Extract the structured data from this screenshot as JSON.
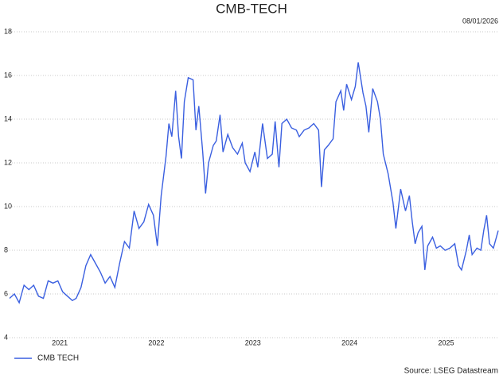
{
  "chart_data": {
    "type": "line",
    "title": "CMB-TECH",
    "date": "08/01/2026",
    "source": "Source: LSEG Datastream",
    "x": [
      2020.98,
      2021.03,
      2021.08,
      2021.13,
      2021.18,
      2021.23,
      2021.28,
      2021.33,
      2021.38,
      2021.43,
      2021.48,
      2021.53,
      2021.58,
      2021.63,
      2021.67,
      2021.72,
      2021.77,
      2021.82,
      2021.87,
      2021.92,
      2021.97,
      2022.02,
      2022.07,
      2022.12,
      2022.17,
      2022.22,
      2022.27,
      2022.32,
      2022.37,
      2022.42,
      2022.47,
      2022.51,
      2022.55,
      2022.6,
      2022.63,
      2022.66,
      2022.7,
      2022.73,
      2022.76,
      2022.79,
      2022.83,
      2022.88,
      2022.91,
      2022.94,
      2022.98,
      2023.01,
      2023.04,
      2023.09,
      2023.12,
      2023.16,
      2023.19,
      2023.24,
      2023.29,
      2023.34,
      2023.39,
      2023.42,
      2023.47,
      2023.52,
      2023.55,
      2023.6,
      2023.65,
      2023.7,
      2023.73,
      2023.77,
      2023.8,
      2023.85,
      2023.9,
      2023.95,
      2023.98,
      2024.03,
      2024.08,
      2024.13,
      2024.18,
      2024.21,
      2024.24,
      2024.28,
      2024.33,
      2024.36,
      2024.41,
      2024.44,
      2024.47,
      2024.52,
      2024.56,
      2024.59,
      2024.64,
      2024.67,
      2024.7,
      2024.74,
      2024.79,
      2024.82,
      2024.85,
      2024.9,
      2024.95,
      2024.98,
      2025.03,
      2025.08,
      2025.12,
      2025.15,
      2025.18,
      2025.21,
      2025.25,
      2025.28,
      2025.31,
      2025.36,
      2025.4,
      2025.44,
      2025.49,
      2025.54,
      2025.59,
      2025.63,
      2025.66,
      2025.71,
      2025.74,
      2025.77,
      2025.82,
      2025.86,
      2025.89,
      2025.92,
      2025.95,
      2025.99,
      2026.04
    ],
    "series": [
      {
        "name": "CMB TECH",
        "color": "#3a5fe0",
        "values": [
          5.8,
          6.0,
          5.6,
          6.4,
          6.2,
          6.4,
          5.9,
          5.8,
          6.6,
          6.5,
          6.6,
          6.1,
          5.9,
          5.7,
          5.8,
          6.3,
          7.3,
          7.8,
          7.4,
          7.0,
          6.5,
          6.8,
          6.3,
          7.4,
          8.4,
          8.1,
          9.8,
          9.0,
          9.3,
          10.1,
          9.6,
          8.2,
          10.5,
          12.3,
          13.8,
          13.2,
          15.3,
          13.2,
          12.2,
          14.8,
          15.9,
          15.8,
          13.5,
          14.6,
          12.5,
          10.6,
          12.0,
          12.8,
          13.0,
          14.2,
          12.5,
          13.3,
          12.7,
          12.4,
          12.9,
          12.0,
          11.6,
          12.5,
          11.8,
          13.8,
          12.2,
          12.4,
          13.9,
          11.8,
          13.8,
          14.0,
          13.6,
          13.5,
          13.2,
          13.5,
          13.6,
          13.8,
          13.5,
          10.9,
          12.6,
          12.8,
          13.1,
          14.8,
          15.3,
          14.4,
          15.6,
          14.9,
          15.5,
          16.6,
          15.2,
          14.6,
          13.4,
          15.4,
          14.8,
          14.0,
          12.4,
          11.5,
          10.2,
          9.0,
          10.8,
          9.8,
          10.5,
          9.3,
          8.3,
          8.8,
          9.1,
          7.1,
          8.2,
          8.6,
          8.1,
          8.2,
          8.0,
          8.1,
          8.3,
          7.3,
          7.1,
          8.0,
          8.7,
          7.8,
          8.1,
          8.0,
          8.9,
          9.6,
          8.3,
          8.1,
          8.9
        ]
      }
    ],
    "xlim": [
      2020.98,
      2026.04
    ],
    "xticks": [
      {
        "value": 2021.5,
        "label": "2021"
      },
      {
        "value": 2022.5,
        "label": "2022"
      },
      {
        "value": 2023.5,
        "label": "2023"
      },
      {
        "value": 2024.5,
        "label": "2024"
      },
      {
        "value": 2025.5,
        "label": "2025"
      }
    ],
    "ylim": [
      4,
      18
    ],
    "yticks": [
      4,
      6,
      8,
      10,
      12,
      14,
      16,
      18
    ],
    "grid": true
  }
}
